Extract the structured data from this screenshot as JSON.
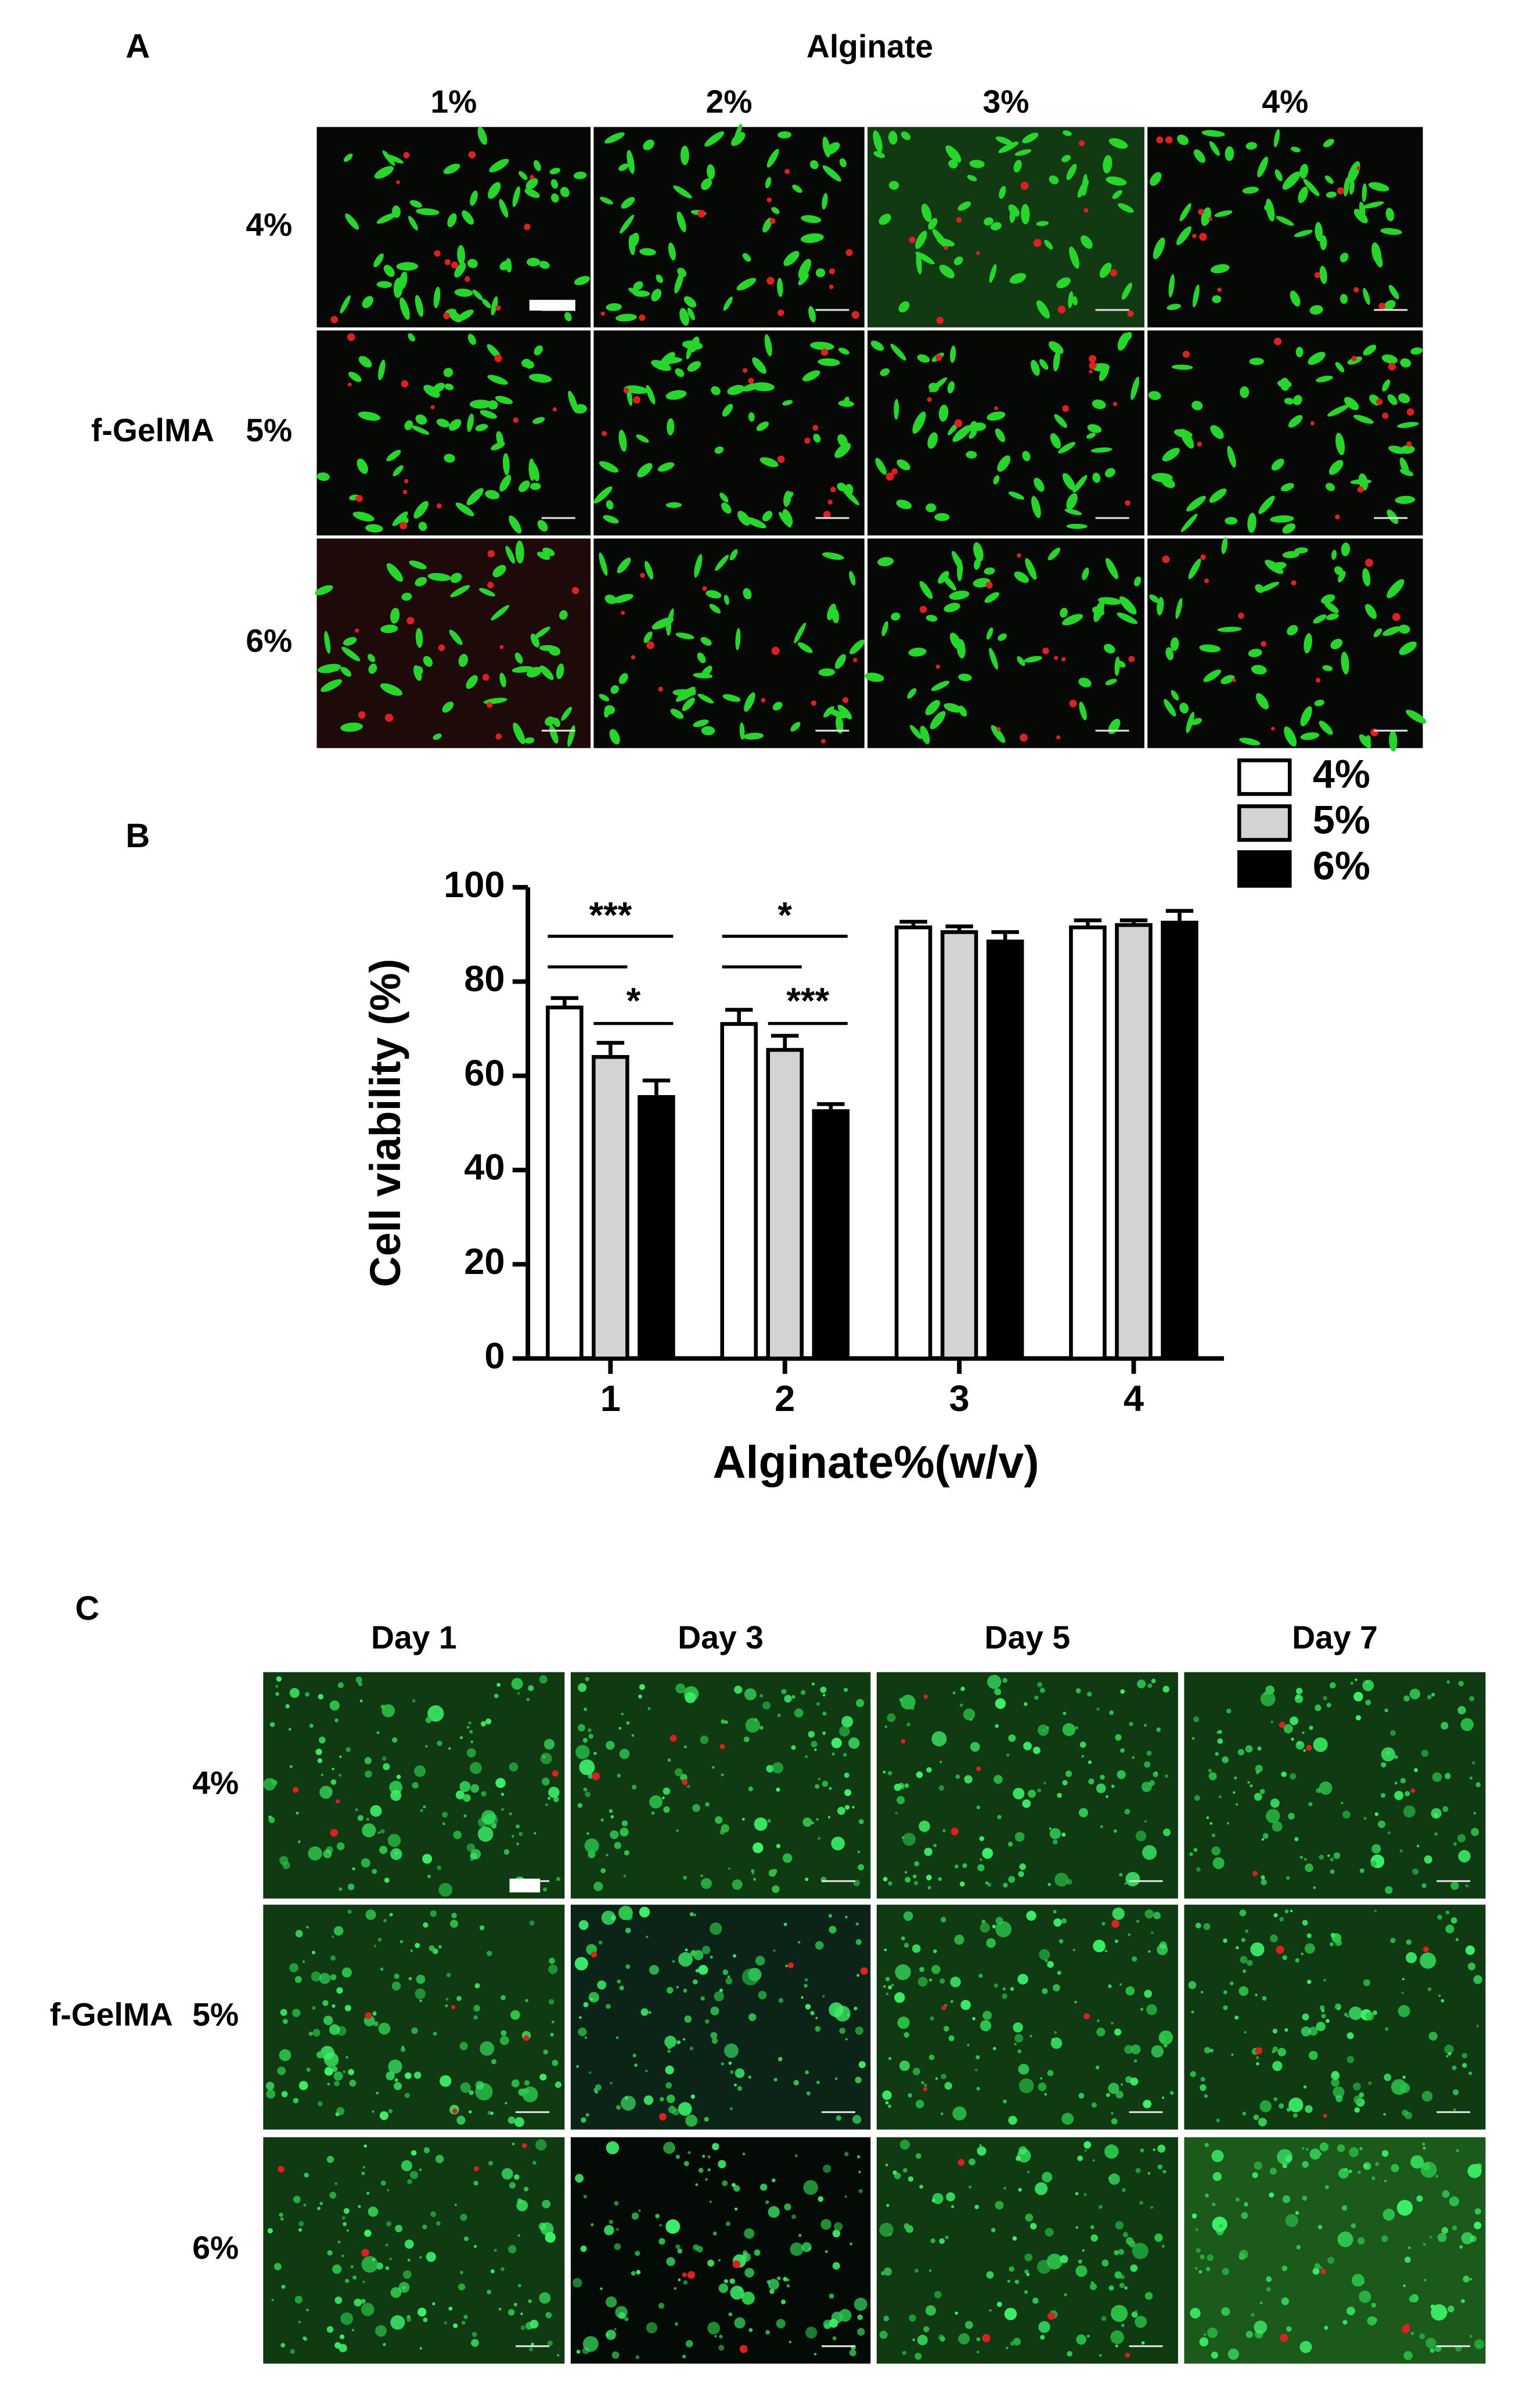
{
  "panel_a": {
    "label": "A",
    "column_title": "Alginate",
    "columns": [
      "1%",
      "2%",
      "3%",
      "4%"
    ],
    "row_title": "f-GelMA",
    "rows": [
      "4%",
      "5%",
      "6%"
    ]
  },
  "chart_data": {
    "type": "bar",
    "panel_label": "B",
    "categories": [
      "1",
      "2",
      "3",
      "4"
    ],
    "series": [
      {
        "name": "4%",
        "color": "#ffffff",
        "values": [
          74.5,
          71,
          91.5,
          91.5
        ],
        "errors": [
          2,
          3,
          1.2,
          1.5
        ]
      },
      {
        "name": "5%",
        "color": "#d3d3d3",
        "values": [
          64,
          65.5,
          90.5,
          92
        ],
        "errors": [
          3,
          3,
          1.2,
          1
        ]
      },
      {
        "name": "6%",
        "color": "#000000",
        "values": [
          55.5,
          52.5,
          88.5,
          92.5
        ],
        "errors": [
          3.5,
          1.5,
          2,
          2.5
        ]
      }
    ],
    "ylim": [
      0,
      100
    ],
    "yticks": [
      0,
      20,
      40,
      60,
      80,
      100
    ],
    "ylabel": "Cell viability (%)",
    "xlabel": "Alginate%(w/v)",
    "annotations": [
      "***",
      "*",
      "*",
      "***"
    ],
    "legend": "top-right"
  },
  "panel_c": {
    "label": "C",
    "columns": [
      "Day 1",
      "Day 3",
      "Day 5",
      "Day 7"
    ],
    "row_title": "f-GelMA",
    "rows": [
      "4%",
      "5%",
      "6%"
    ]
  }
}
